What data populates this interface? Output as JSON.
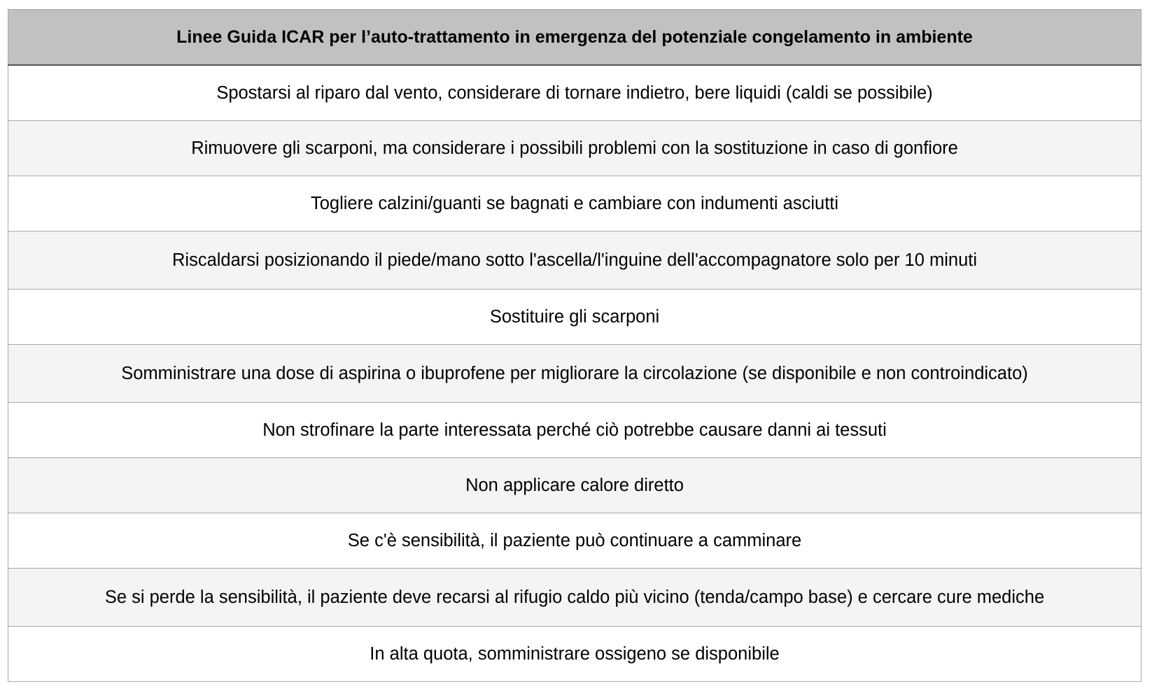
{
  "table": {
    "header": "Linee Guida ICAR per l’auto-trattamento in emergenza del potenziale congelamento in ambiente",
    "rows": [
      "Spostarsi al riparo dal vento, considerare di tornare indietro, bere liquidi (caldi se possibile)",
      "Rimuovere gli scarponi, ma considerare i possibili problemi con la sostituzione in caso di gonfiore",
      "Togliere calzini/guanti se bagnati e cambiare con indumenti asciutti",
      "Riscaldarsi  posizionando il piede/mano sotto l'ascella/l'inguine dell'accompagnatore solo per 10 minuti",
      "Sostituire gli scarponi",
      "Somministrare una dose di aspirina o ibuprofene per migliorare la circolazione (se disponibile e non controindicato)",
      "Non strofinare la parte interessata perché ciò potrebbe causare danni ai tessuti",
      "Non applicare calore diretto",
      "Se c'è sensibilità, il paziente può continuare a camminare",
      "Se si perde la sensibilità, il paziente deve recarsi al rifugio caldo più vicino (tenda/campo base) e cercare cure mediche",
      "In alta quota, somministrare ossigeno se disponibile"
    ]
  },
  "colors": {
    "header_bg": "#c0c1c0",
    "row_alt_bg": "#f4f4f4",
    "border": "#a8a8a8"
  }
}
